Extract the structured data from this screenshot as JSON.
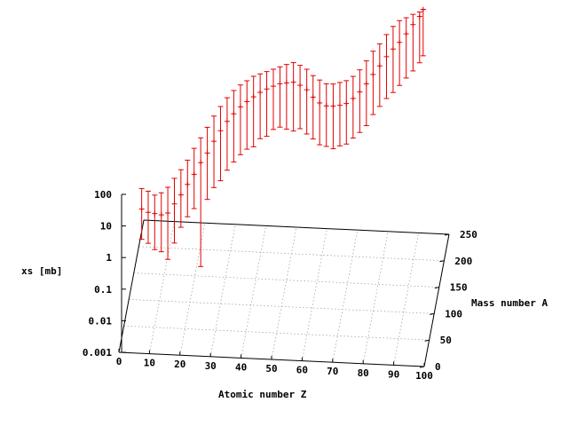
{
  "chart_data": {
    "type": "scatter",
    "kind": "3d-error-bars",
    "title": "",
    "xlabel": "Atomic number Z",
    "ylabel": "Mass number A",
    "zlabel": "xs [mb]",
    "xlim": [
      0,
      100
    ],
    "ylim": [
      0,
      250
    ],
    "zlim": [
      0.001,
      100
    ],
    "zscale": "log",
    "grid": true,
    "legend": "none",
    "xticks": [
      "0",
      "10",
      "20",
      "30",
      "40",
      "50",
      "60",
      "70",
      "80",
      "90",
      "100"
    ],
    "yticks": [
      "0",
      "50",
      "100",
      "150",
      "200",
      "250"
    ],
    "zticks": [
      "0.001",
      "0.01",
      "0.1",
      "1",
      "10",
      "100"
    ],
    "colors": {
      "series": "#e00000",
      "grid": "#9a9a9a",
      "axis": "#000000"
    },
    "series": [
      {
        "points": [
          {
            "Z": 7,
            "A": 14,
            "xs": 0.9,
            "xs_low": 0.2,
            "xs_high": 2.5
          },
          {
            "Z": 9,
            "A": 18,
            "xs": 0.7,
            "xs_low": 0.15,
            "xs_high": 2
          },
          {
            "Z": 11,
            "A": 22,
            "xs": 0.6,
            "xs_low": 0.1,
            "xs_high": 1.5
          },
          {
            "Z": 13,
            "A": 27,
            "xs": 0.5,
            "xs_low": 0.08,
            "xs_high": 1.5
          },
          {
            "Z": 15,
            "A": 31,
            "xs": 0.5,
            "xs_low": 0.05,
            "xs_high": 1.8
          },
          {
            "Z": 17,
            "A": 36,
            "xs": 0.7,
            "xs_low": 0.1,
            "xs_high": 2.5
          },
          {
            "Z": 19,
            "A": 40,
            "xs": 1.0,
            "xs_low": 0.2,
            "xs_high": 3.5
          },
          {
            "Z": 21,
            "A": 45,
            "xs": 1.5,
            "xs_low": 0.3,
            "xs_high": 5
          },
          {
            "Z": 23,
            "A": 50,
            "xs": 2.2,
            "xs_low": 0.4,
            "xs_high": 8
          },
          {
            "Z": 25,
            "A": 55,
            "xs": 3.5,
            "xs_low": 0.02,
            "xs_high": 12
          },
          {
            "Z": 27,
            "A": 60,
            "xs": 5,
            "xs_low": 0.5,
            "xs_high": 18
          },
          {
            "Z": 29,
            "A": 65,
            "xs": 8,
            "xs_low": 0.8,
            "xs_high": 28
          },
          {
            "Z": 31,
            "A": 70,
            "xs": 12,
            "xs_low": 1,
            "xs_high": 40
          },
          {
            "Z": 33,
            "A": 75,
            "xs": 17,
            "xs_low": 1.5,
            "xs_high": 55
          },
          {
            "Z": 35,
            "A": 80,
            "xs": 22,
            "xs_low": 2,
            "xs_high": 70
          },
          {
            "Z": 37,
            "A": 86,
            "xs": 27,
            "xs_low": 2.5,
            "xs_high": 80
          },
          {
            "Z": 39,
            "A": 90,
            "xs": 32,
            "xs_low": 3,
            "xs_high": 90
          },
          {
            "Z": 41,
            "A": 95,
            "xs": 36,
            "xs_low": 3,
            "xs_high": 100
          },
          {
            "Z": 43,
            "A": 100,
            "xs": 40,
            "xs_low": 4,
            "xs_high": 100
          },
          {
            "Z": 45,
            "A": 105,
            "xs": 42,
            "xs_low": 4,
            "xs_high": 100
          },
          {
            "Z": 47,
            "A": 110,
            "xs": 43,
            "xs_low": 5,
            "xs_high": 100
          },
          {
            "Z": 49,
            "A": 115,
            "xs": 43,
            "xs_low": 5,
            "xs_high": 100
          },
          {
            "Z": 51,
            "A": 120,
            "xs": 40,
            "xs_low": 4,
            "xs_high": 100
          },
          {
            "Z": 53,
            "A": 128,
            "xs": 34,
            "xs_low": 3,
            "xs_high": 90
          },
          {
            "Z": 55,
            "A": 133,
            "xs": 26,
            "xs_low": 3,
            "xs_high": 70
          },
          {
            "Z": 57,
            "A": 139,
            "xs": 18,
            "xs_low": 2,
            "xs_high": 50
          },
          {
            "Z": 59,
            "A": 141,
            "xs": 12,
            "xs_low": 1.5,
            "xs_high": 35
          },
          {
            "Z": 61,
            "A": 146,
            "xs": 8,
            "xs_low": 1,
            "xs_high": 25
          },
          {
            "Z": 63,
            "A": 152,
            "xs": 6,
            "xs_low": 0.8,
            "xs_high": 18
          },
          {
            "Z": 65,
            "A": 159,
            "xs": 5,
            "xs_low": 0.6,
            "xs_high": 15
          },
          {
            "Z": 67,
            "A": 165,
            "xs": 4.5,
            "xs_low": 0.6,
            "xs_high": 14
          },
          {
            "Z": 69,
            "A": 169,
            "xs": 4.5,
            "xs_low": 0.6,
            "xs_high": 14
          },
          {
            "Z": 71,
            "A": 175,
            "xs": 5,
            "xs_low": 0.7,
            "xs_high": 15
          },
          {
            "Z": 73,
            "A": 181,
            "xs": 6,
            "xs_low": 0.8,
            "xs_high": 18
          },
          {
            "Z": 75,
            "A": 186,
            "xs": 8,
            "xs_low": 1,
            "xs_high": 25
          },
          {
            "Z": 77,
            "A": 192,
            "xs": 11,
            "xs_low": 1.5,
            "xs_high": 35
          },
          {
            "Z": 79,
            "A": 197,
            "xs": 15,
            "xs_low": 2,
            "xs_high": 45
          },
          {
            "Z": 81,
            "A": 204,
            "xs": 20,
            "xs_low": 2.5,
            "xs_high": 60
          },
          {
            "Z": 83,
            "A": 209,
            "xs": 26,
            "xs_low": 3,
            "xs_high": 80
          },
          {
            "Z": 85,
            "A": 212,
            "xs": 34,
            "xs_low": 4,
            "xs_high": 100
          },
          {
            "Z": 87,
            "A": 218,
            "xs": 45,
            "xs_low": 5,
            "xs_high": 100
          },
          {
            "Z": 89,
            "A": 225,
            "xs": 60,
            "xs_low": 6,
            "xs_high": 100
          },
          {
            "Z": 91,
            "A": 230,
            "xs": 80,
            "xs_low": 8,
            "xs_high": 100
          },
          {
            "Z": 92,
            "A": 235,
            "xs": 100,
            "xs_low": 10,
            "xs_high": 100
          }
        ]
      }
    ]
  }
}
